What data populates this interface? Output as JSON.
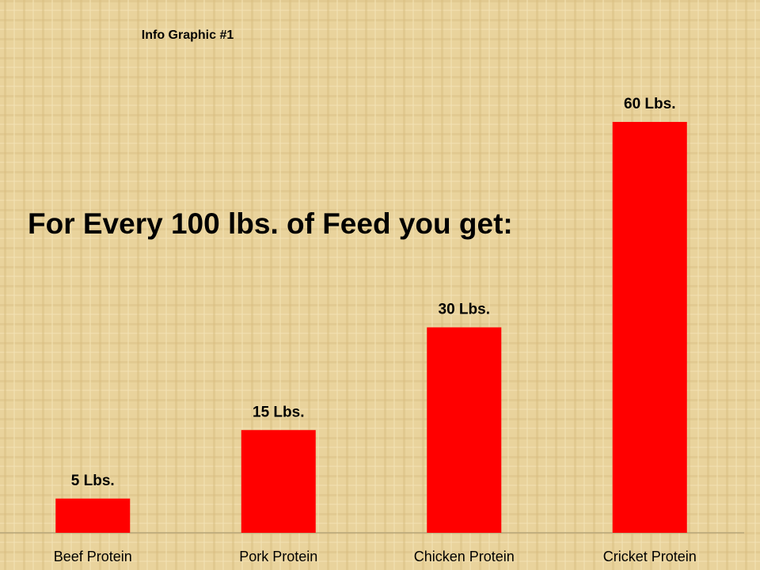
{
  "chart_data": {
    "type": "bar",
    "title": "For Every 100 lbs. of Feed you get:",
    "subtitle": "Info Graphic #1",
    "categories": [
      "Beef Protein",
      "Pork Protein",
      "Chicken Protein",
      "Cricket Protein"
    ],
    "values": [
      5,
      15,
      30,
      60
    ],
    "value_labels": [
      "5 Lbs.",
      "15 Lbs.",
      "30 Lbs.",
      "60 Lbs."
    ],
    "color": "#ff0000"
  }
}
